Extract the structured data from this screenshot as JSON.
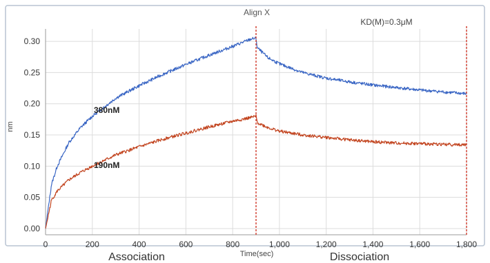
{
  "chart_data": {
    "type": "line",
    "title": "Align X",
    "annotation": "KD(M)=0.3μM",
    "xlabel": "Time(sec)",
    "ylabel": "nm",
    "xlim": [
      0,
      1800
    ],
    "ylim": [
      -0.01,
      0.32
    ],
    "x_ticks": [
      0,
      200,
      400,
      600,
      800,
      1000,
      1200,
      1400,
      1600,
      1800
    ],
    "x_tick_labels": [
      "0",
      "200",
      "400",
      "600",
      "800",
      "1,000",
      "1,200",
      "1,400",
      "1,600",
      "1,800"
    ],
    "y_ticks": [
      0.0,
      0.05,
      0.1,
      0.15,
      0.2,
      0.25,
      0.3
    ],
    "y_tick_labels": [
      "0.00",
      "0.05",
      "0.10",
      "0.15",
      "0.20",
      "0.25",
      "0.30"
    ],
    "grid": true,
    "phase_markers": [
      900,
      1800
    ],
    "phase_labels": [
      "Association",
      "Dissociation"
    ],
    "colors": {
      "series_380": "#3a66c4",
      "series_190": "#c2441f",
      "marker": "#d03a2a",
      "grid": "#dcdcdc",
      "frame": "#b8c4d2"
    },
    "series": [
      {
        "name": "380nM",
        "x": [
          0,
          25,
          50,
          100,
          150,
          200,
          300,
          400,
          500,
          600,
          700,
          800,
          880,
          900,
          905,
          950,
          1000,
          1100,
          1200,
          1300,
          1400,
          1500,
          1600,
          1700,
          1800
        ],
        "y": [
          0.0,
          0.07,
          0.1,
          0.138,
          0.162,
          0.18,
          0.209,
          0.229,
          0.247,
          0.263,
          0.278,
          0.292,
          0.304,
          0.305,
          0.29,
          0.274,
          0.264,
          0.25,
          0.241,
          0.235,
          0.23,
          0.226,
          0.222,
          0.219,
          0.216
        ]
      },
      {
        "name": "190nM",
        "x": [
          0,
          25,
          50,
          100,
          150,
          200,
          300,
          400,
          500,
          600,
          700,
          800,
          880,
          900,
          905,
          950,
          1000,
          1100,
          1200,
          1300,
          1400,
          1500,
          1600,
          1700,
          1800
        ],
        "y": [
          0.0,
          0.045,
          0.06,
          0.078,
          0.09,
          0.1,
          0.118,
          0.131,
          0.143,
          0.153,
          0.163,
          0.172,
          0.178,
          0.18,
          0.17,
          0.162,
          0.156,
          0.15,
          0.146,
          0.142,
          0.139,
          0.137,
          0.136,
          0.135,
          0.134
        ]
      }
    ]
  }
}
